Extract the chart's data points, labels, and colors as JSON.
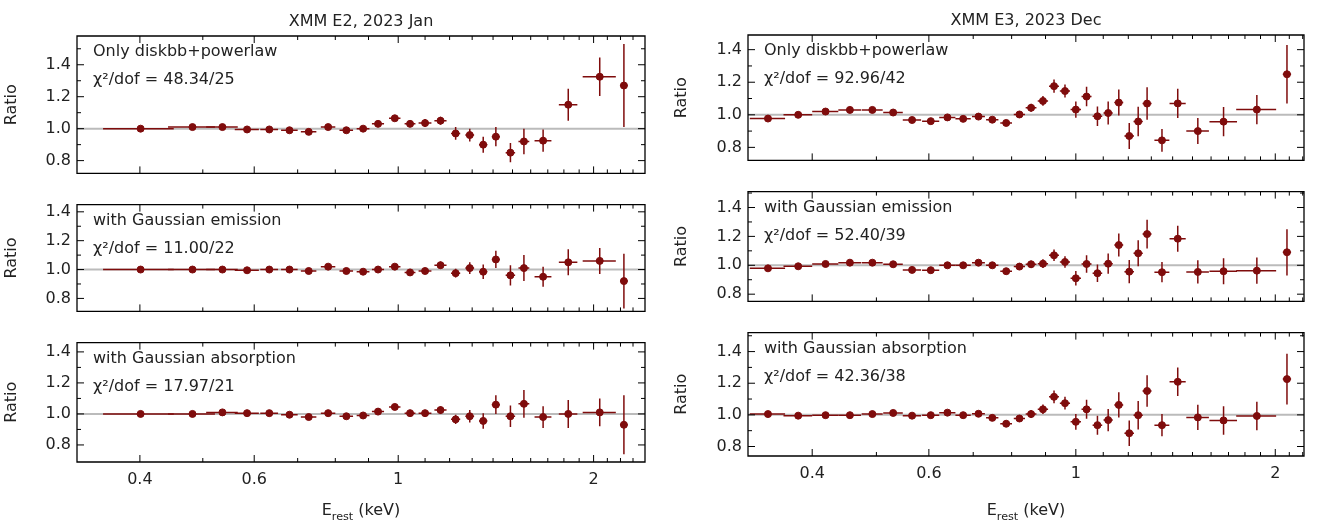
{
  "chart_data": [
    {
      "type": "scatter",
      "title": "XMM E2, 2023 Jan",
      "ylabel": "Ratio",
      "log": "x",
      "marker": "circle",
      "color": "#7f0c0c",
      "tick_labels": "y",
      "annotations": [
        "Only diskbb+powerlaw",
        "χ²/dof = 48.34/25"
      ],
      "ref_lines": [
        {
          "axis": "y",
          "value": 1,
          "color": "#bbbbbb"
        }
      ],
      "xlim": [
        0.32,
        2.4
      ],
      "ylim": [
        0.72,
        1.58
      ],
      "xticks": [
        0.4,
        {
          "value": 0.5,
          "label": null
        },
        0.6,
        {
          "value": 0.7,
          "label": null
        },
        {
          "value": 0.8,
          "label": null
        },
        {
          "value": 0.9,
          "label": null
        },
        1,
        {
          "value": 1.1,
          "label": null
        },
        {
          "value": 1.2,
          "label": null
        },
        {
          "value": 1.3,
          "label": null
        },
        {
          "value": 1.4,
          "label": null
        },
        {
          "value": 1.5,
          "label": null
        },
        {
          "value": 1.6,
          "label": null
        },
        {
          "value": 1.7,
          "label": null
        },
        {
          "value": 1.8,
          "label": null
        },
        {
          "value": 1.9,
          "label": null
        },
        2,
        {
          "value": 2.1,
          "label": null
        },
        {
          "value": 2.2,
          "label": null
        },
        {
          "value": 2.3,
          "label": null
        }
      ],
      "yticks": [
        {
          "value": 0.8,
          "label": "0.8"
        },
        {
          "value": 0.9,
          "label": null
        },
        {
          "value": 1,
          "label": "1.0"
        },
        {
          "value": 1.1,
          "label": null
        },
        {
          "value": 1.2,
          "label": "1.2"
        },
        {
          "value": 1.3,
          "label": null
        },
        {
          "value": 1.4,
          "label": "1.4"
        },
        {
          "value": 1.5,
          "label": null
        }
      ],
      "x": [
        0.401,
        0.482,
        0.536,
        0.585,
        0.633,
        0.68,
        0.728,
        0.78,
        0.832,
        0.883,
        0.931,
        0.988,
        1.043,
        1.1,
        1.162,
        1.226,
        1.289,
        1.352,
        1.414,
        1.489,
        1.562,
        1.672,
        1.828,
        2.044,
        2.227
      ],
      "values": [
        1.0,
        1.01,
        1.01,
        0.995,
        0.995,
        0.99,
        0.98,
        1.01,
        0.99,
        1.0,
        1.03,
        1.065,
        1.03,
        1.035,
        1.05,
        0.97,
        0.96,
        0.9,
        0.95,
        0.85,
        0.92,
        0.925,
        1.15,
        1.325,
        1.27
      ],
      "errors": [
        0.01,
        0.01,
        0.01,
        0.01,
        0.01,
        0.01,
        0.01,
        0.01,
        0.01,
        0.01,
        0.015,
        0.015,
        0.02,
        0.025,
        0.025,
        0.04,
        0.04,
        0.05,
        0.06,
        0.06,
        0.08,
        0.07,
        0.1,
        0.12,
        0.26
      ],
      "xerrors": [
        0.05,
        0.04,
        0.03,
        0.025,
        0.02,
        0.02,
        0.02,
        0.02,
        0.02,
        0.02,
        0.02,
        0.02,
        0.02,
        0.025,
        0.025,
        0.02,
        0.02,
        0.02,
        0.02,
        0.025,
        0.03,
        0.05,
        0.06,
        0.12,
        0.03
      ]
    },
    {
      "type": "scatter",
      "ylabel": "Ratio",
      "log": "x",
      "marker": "circle",
      "color": "#7f0c0c",
      "tick_labels": "y",
      "annotations": [
        "with Gaussian emission",
        "χ²/dof = 11.00/22"
      ],
      "ref_lines": [
        {
          "axis": "y",
          "value": 1,
          "color": "#bbbbbb"
        }
      ],
      "xlim": [
        0.32,
        2.4
      ],
      "ylim": [
        0.71,
        1.45
      ],
      "xticks": [
        0.4,
        {
          "value": 0.5,
          "label": null
        },
        0.6,
        {
          "value": 0.7,
          "label": null
        },
        {
          "value": 0.8,
          "label": null
        },
        {
          "value": 0.9,
          "label": null
        },
        1,
        {
          "value": 1.1,
          "label": null
        },
        {
          "value": 1.2,
          "label": null
        },
        {
          "value": 1.3,
          "label": null
        },
        {
          "value": 1.4,
          "label": null
        },
        {
          "value": 1.5,
          "label": null
        },
        {
          "value": 1.6,
          "label": null
        },
        {
          "value": 1.7,
          "label": null
        },
        {
          "value": 1.8,
          "label": null
        },
        {
          "value": 1.9,
          "label": null
        },
        2,
        {
          "value": 2.1,
          "label": null
        },
        {
          "value": 2.2,
          "label": null
        },
        {
          "value": 2.3,
          "label": null
        }
      ],
      "yticks": [
        {
          "value": 0.8,
          "label": "0.8"
        },
        {
          "value": 0.9,
          "label": null
        },
        {
          "value": 1,
          "label": "1.0"
        },
        {
          "value": 1.1,
          "label": null
        },
        {
          "value": 1.2,
          "label": "1.2"
        },
        {
          "value": 1.3,
          "label": null
        },
        {
          "value": 1.4,
          "label": "1.4"
        }
      ],
      "x": [
        0.401,
        0.482,
        0.536,
        0.585,
        0.633,
        0.68,
        0.728,
        0.78,
        0.832,
        0.883,
        0.931,
        0.988,
        1.043,
        1.1,
        1.162,
        1.226,
        1.289,
        1.352,
        1.414,
        1.489,
        1.562,
        1.672,
        1.828,
        2.044,
        2.227
      ],
      "values": [
        1.0,
        1.0,
        1.0,
        0.995,
        1.0,
        1.0,
        0.99,
        1.02,
        0.99,
        0.985,
        1.0,
        1.02,
        0.98,
        0.99,
        1.03,
        0.975,
        1.01,
        0.985,
        1.07,
        0.96,
        1.01,
        0.95,
        1.05,
        1.06,
        0.92
      ],
      "errors": [
        0.01,
        0.01,
        0.01,
        0.01,
        0.01,
        0.01,
        0.01,
        0.01,
        0.01,
        0.01,
        0.01,
        0.015,
        0.02,
        0.02,
        0.025,
        0.03,
        0.04,
        0.05,
        0.06,
        0.07,
        0.09,
        0.07,
        0.09,
        0.09,
        0.19
      ],
      "xerrors": [
        0.05,
        0.04,
        0.03,
        0.025,
        0.02,
        0.02,
        0.02,
        0.02,
        0.02,
        0.02,
        0.02,
        0.02,
        0.02,
        0.025,
        0.025,
        0.02,
        0.02,
        0.02,
        0.02,
        0.025,
        0.03,
        0.05,
        0.06,
        0.12,
        0.03
      ]
    },
    {
      "type": "scatter",
      "xlabel": "E$_{rest}$ (keV)",
      "ylabel": "Ratio",
      "log": "x",
      "marker": "circle",
      "color": "#7f0c0c",
      "annotations": [
        "with Gaussian absorption",
        "χ²/dof = 17.97/21"
      ],
      "ref_lines": [
        {
          "axis": "y",
          "value": 1,
          "color": "#bbbbbb"
        }
      ],
      "xlim": [
        0.32,
        2.4
      ],
      "ylim": [
        0.69,
        1.46
      ],
      "xticks": [
        0.4,
        {
          "value": 0.5,
          "label": null
        },
        0.6,
        {
          "value": 0.7,
          "label": null
        },
        {
          "value": 0.8,
          "label": null
        },
        {
          "value": 0.9,
          "label": null
        },
        1,
        {
          "value": 1.1,
          "label": null
        },
        {
          "value": 1.2,
          "label": null
        },
        {
          "value": 1.3,
          "label": null
        },
        {
          "value": 1.4,
          "label": null
        },
        {
          "value": 1.5,
          "label": null
        },
        {
          "value": 1.6,
          "label": null
        },
        {
          "value": 1.7,
          "label": null
        },
        {
          "value": 1.8,
          "label": null
        },
        {
          "value": 1.9,
          "label": null
        },
        2,
        {
          "value": 2.1,
          "label": null
        },
        {
          "value": 2.2,
          "label": null
        },
        {
          "value": 2.3,
          "label": null
        }
      ],
      "yticks": [
        {
          "value": 0.8,
          "label": "0.8"
        },
        {
          "value": 0.9,
          "label": null
        },
        {
          "value": 1,
          "label": "1.0"
        },
        {
          "value": 1.1,
          "label": null
        },
        {
          "value": 1.2,
          "label": "1.2"
        },
        {
          "value": 1.3,
          "label": null
        },
        {
          "value": 1.4,
          "label": "1.4"
        }
      ],
      "x": [
        0.401,
        0.482,
        0.536,
        0.585,
        0.633,
        0.68,
        0.728,
        0.78,
        0.832,
        0.883,
        0.931,
        0.988,
        1.043,
        1.1,
        1.162,
        1.226,
        1.289,
        1.352,
        1.414,
        1.489,
        1.562,
        1.672,
        1.828,
        2.044,
        2.227
      ],
      "values": [
        1.0,
        1.0,
        1.01,
        1.005,
        1.005,
        0.995,
        0.98,
        1.005,
        0.985,
        0.99,
        1.015,
        1.045,
        1.005,
        1.005,
        1.025,
        0.965,
        0.985,
        0.955,
        1.06,
        0.985,
        1.065,
        0.98,
        1.0,
        1.01,
        0.93
      ],
      "errors": [
        0.01,
        0.01,
        0.01,
        0.01,
        0.01,
        0.01,
        0.01,
        0.01,
        0.01,
        0.01,
        0.01,
        0.015,
        0.02,
        0.02,
        0.025,
        0.03,
        0.04,
        0.05,
        0.06,
        0.07,
        0.09,
        0.07,
        0.09,
        0.09,
        0.19
      ],
      "xerrors": [
        0.05,
        0.04,
        0.03,
        0.025,
        0.02,
        0.02,
        0.02,
        0.02,
        0.02,
        0.02,
        0.02,
        0.02,
        0.02,
        0.025,
        0.025,
        0.02,
        0.02,
        0.02,
        0.02,
        0.025,
        0.03,
        0.05,
        0.06,
        0.12,
        0.03
      ]
    },
    {
      "type": "scatter",
      "title": "XMM E3, 2023 Dec",
      "ylabel": "Ratio",
      "log": "x",
      "marker": "circle",
      "color": "#7f0c0c",
      "tick_labels": "y",
      "annotations": [
        "Only diskbb+powerlaw",
        "χ²/dof = 92.96/42"
      ],
      "ref_lines": [
        {
          "axis": "y",
          "value": 1,
          "color": "#bbbbbb"
        }
      ],
      "xlim": [
        0.32,
        2.21
      ],
      "ylim": [
        0.72,
        1.49
      ],
      "xticks": [
        0.4,
        {
          "value": 0.5,
          "label": null
        },
        0.6,
        {
          "value": 0.7,
          "label": null
        },
        {
          "value": 0.8,
          "label": null
        },
        {
          "value": 0.9,
          "label": null
        },
        1,
        {
          "value": 1.1,
          "label": null
        },
        {
          "value": 1.2,
          "label": null
        },
        {
          "value": 1.3,
          "label": null
        },
        {
          "value": 1.4,
          "label": null
        },
        {
          "value": 1.5,
          "label": null
        },
        {
          "value": 1.6,
          "label": null
        },
        {
          "value": 1.7,
          "label": null
        },
        {
          "value": 1.8,
          "label": null
        },
        {
          "value": 1.9,
          "label": null
        },
        2,
        {
          "value": 2.1,
          "label": null
        },
        {
          "value": 2.2,
          "label": null
        }
      ],
      "yticks": [
        {
          "value": 0.8,
          "label": "0.8"
        },
        {
          "value": 0.9,
          "label": null
        },
        {
          "value": 1,
          "label": "1.0"
        },
        {
          "value": 1.1,
          "label": null
        },
        {
          "value": 1.2,
          "label": "1.2"
        },
        {
          "value": 1.3,
          "label": null
        },
        {
          "value": 1.4,
          "label": "1.4"
        }
      ],
      "x": [
        0.343,
        0.381,
        0.419,
        0.456,
        0.493,
        0.53,
        0.566,
        0.604,
        0.64,
        0.676,
        0.713,
        0.748,
        0.785,
        0.822,
        0.856,
        0.892,
        0.927,
        0.963,
        1.0,
        1.038,
        1.078,
        1.119,
        1.161,
        1.204,
        1.242,
        1.281,
        1.349,
        1.425,
        1.528,
        1.671,
        1.876,
        2.083
      ],
      "values": [
        0.977,
        1.0,
        1.02,
        1.03,
        1.03,
        1.014,
        0.968,
        0.961,
        0.984,
        0.975,
        0.989,
        0.97,
        0.95,
        1.002,
        1.043,
        1.085,
        1.176,
        1.146,
        1.032,
        1.112,
        0.991,
        1.011,
        1.075,
        0.87,
        0.959,
        1.069,
        0.843,
        1.07,
        0.9,
        0.958,
        1.032,
        1.249
      ],
      "errors": [
        0.01,
        0.01,
        0.01,
        0.01,
        0.01,
        0.01,
        0.01,
        0.01,
        0.012,
        0.012,
        0.015,
        0.015,
        0.018,
        0.02,
        0.025,
        0.03,
        0.04,
        0.04,
        0.05,
        0.06,
        0.06,
        0.07,
        0.08,
        0.08,
        0.09,
        0.1,
        0.07,
        0.09,
        0.08,
        0.09,
        0.09,
        0.18
      ],
      "xerrors": [
        0.021,
        0.019,
        0.019,
        0.018,
        0.018,
        0.018,
        0.018,
        0.018,
        0.018,
        0.018,
        0.016,
        0.016,
        0.016,
        0.016,
        0.016,
        0.016,
        0.016,
        0.017,
        0.018,
        0.018,
        0.018,
        0.018,
        0.018,
        0.02,
        0.02,
        0.02,
        0.035,
        0.04,
        0.06,
        0.08,
        0.13,
        0.03
      ]
    },
    {
      "type": "scatter",
      "ylabel": "Ratio",
      "log": "x",
      "marker": "circle",
      "color": "#7f0c0c",
      "tick_labels": "y",
      "annotations": [
        "with Gaussian emission",
        "χ²/dof = 52.40/39"
      ],
      "ref_lines": [
        {
          "axis": "y",
          "value": 1,
          "color": "#bbbbbb"
        }
      ],
      "xlim": [
        0.32,
        2.21
      ],
      "ylim": [
        0.75,
        1.51
      ],
      "xticks": [
        0.4,
        {
          "value": 0.5,
          "label": null
        },
        0.6,
        {
          "value": 0.7,
          "label": null
        },
        {
          "value": 0.8,
          "label": null
        },
        {
          "value": 0.9,
          "label": null
        },
        1,
        {
          "value": 1.1,
          "label": null
        },
        {
          "value": 1.2,
          "label": null
        },
        {
          "value": 1.3,
          "label": null
        },
        {
          "value": 1.4,
          "label": null
        },
        {
          "value": 1.5,
          "label": null
        },
        {
          "value": 1.6,
          "label": null
        },
        {
          "value": 1.7,
          "label": null
        },
        {
          "value": 1.8,
          "label": null
        },
        {
          "value": 1.9,
          "label": null
        },
        2,
        {
          "value": 2.1,
          "label": null
        },
        {
          "value": 2.2,
          "label": null
        }
      ],
      "yticks": [
        {
          "value": 0.8,
          "label": "0.8"
        },
        {
          "value": 0.9,
          "label": null
        },
        {
          "value": 1,
          "label": "1.0"
        },
        {
          "value": 1.1,
          "label": null
        },
        {
          "value": 1.2,
          "label": "1.2"
        },
        {
          "value": 1.3,
          "label": null
        },
        {
          "value": 1.4,
          "label": "1.4"
        },
        {
          "value": 1.5,
          "label": null
        }
      ],
      "x": [
        0.343,
        0.381,
        0.419,
        0.456,
        0.493,
        0.53,
        0.566,
        0.604,
        0.64,
        0.676,
        0.713,
        0.748,
        0.785,
        0.822,
        0.856,
        0.892,
        0.927,
        0.963,
        1.0,
        1.038,
        1.078,
        1.119,
        1.161,
        1.204,
        1.242,
        1.281,
        1.349,
        1.425,
        1.528,
        1.671,
        1.876,
        2.083
      ],
      "values": [
        0.979,
        0.993,
        1.009,
        1.018,
        1.018,
        1.007,
        0.968,
        0.966,
        1.0,
        1.0,
        1.018,
        1.0,
        0.959,
        0.991,
        1.007,
        1.011,
        1.069,
        1.023,
        0.91,
        1.009,
        0.945,
        1.011,
        1.14,
        0.956,
        1.083,
        1.216,
        0.952,
        1.184,
        0.954,
        0.959,
        0.963,
        1.09
      ],
      "errors": [
        0.01,
        0.01,
        0.01,
        0.01,
        0.01,
        0.01,
        0.01,
        0.01,
        0.012,
        0.012,
        0.015,
        0.015,
        0.018,
        0.02,
        0.025,
        0.03,
        0.04,
        0.04,
        0.05,
        0.06,
        0.06,
        0.07,
        0.08,
        0.08,
        0.09,
        0.1,
        0.07,
        0.09,
        0.08,
        0.09,
        0.09,
        0.16
      ],
      "xerrors": [
        0.021,
        0.019,
        0.019,
        0.018,
        0.018,
        0.018,
        0.018,
        0.018,
        0.018,
        0.018,
        0.016,
        0.016,
        0.016,
        0.016,
        0.016,
        0.016,
        0.016,
        0.017,
        0.018,
        0.018,
        0.018,
        0.018,
        0.018,
        0.02,
        0.02,
        0.02,
        0.035,
        0.04,
        0.06,
        0.08,
        0.13,
        0.03
      ]
    },
    {
      "type": "scatter",
      "xlabel": "E$_{rest}$ (keV)",
      "ylabel": "Ratio",
      "log": "x",
      "marker": "circle",
      "color": "#7f0c0c",
      "annotations": [
        "with Gaussian absorption",
        "χ²/dof = 42.36/38"
      ],
      "ref_lines": [
        {
          "axis": "y",
          "value": 1,
          "color": "#bbbbbb"
        }
      ],
      "xlim": [
        0.32,
        2.21
      ],
      "ylim": [
        0.74,
        1.52
      ],
      "xticks": [
        0.4,
        {
          "value": 0.5,
          "label": null
        },
        0.6,
        {
          "value": 0.7,
          "label": null
        },
        {
          "value": 0.8,
          "label": null
        },
        {
          "value": 0.9,
          "label": null
        },
        1,
        {
          "value": 1.1,
          "label": null
        },
        {
          "value": 1.2,
          "label": null
        },
        {
          "value": 1.3,
          "label": null
        },
        {
          "value": 1.4,
          "label": null
        },
        {
          "value": 1.5,
          "label": null
        },
        {
          "value": 1.6,
          "label": null
        },
        {
          "value": 1.7,
          "label": null
        },
        {
          "value": 1.8,
          "label": null
        },
        {
          "value": 1.9,
          "label": null
        },
        2,
        {
          "value": 2.1,
          "label": null
        },
        {
          "value": 2.2,
          "label": null
        }
      ],
      "yticks": [
        {
          "value": 0.8,
          "label": "0.8"
        },
        {
          "value": 0.9,
          "label": null
        },
        {
          "value": 1,
          "label": "1.0"
        },
        {
          "value": 1.1,
          "label": null
        },
        {
          "value": 1.2,
          "label": "1.2"
        },
        {
          "value": 1.3,
          "label": null
        },
        {
          "value": 1.4,
          "label": "1.4"
        },
        {
          "value": 1.5,
          "label": null
        }
      ],
      "x": [
        0.343,
        0.381,
        0.419,
        0.456,
        0.493,
        0.53,
        0.566,
        0.604,
        0.64,
        0.676,
        0.713,
        0.748,
        0.785,
        0.822,
        0.856,
        0.892,
        0.927,
        0.963,
        1.0,
        1.038,
        1.078,
        1.119,
        1.161,
        1.204,
        1.242,
        1.281,
        1.349,
        1.425,
        1.528,
        1.671,
        1.876,
        2.083
      ],
      "values": [
        1.005,
        0.995,
        0.998,
        0.998,
        1.005,
        1.012,
        0.995,
        0.998,
        1.014,
        0.998,
        1.007,
        0.981,
        0.944,
        0.977,
        1.005,
        1.035,
        1.114,
        1.074,
        0.956,
        1.035,
        0.935,
        0.967,
        1.063,
        0.884,
        0.998,
        1.151,
        0.935,
        1.209,
        0.984,
        0.965,
        0.993,
        1.226
      ],
      "errors": [
        0.01,
        0.01,
        0.01,
        0.01,
        0.01,
        0.01,
        0.01,
        0.01,
        0.012,
        0.012,
        0.015,
        0.015,
        0.018,
        0.02,
        0.025,
        0.03,
        0.04,
        0.04,
        0.05,
        0.06,
        0.06,
        0.07,
        0.08,
        0.08,
        0.09,
        0.1,
        0.07,
        0.09,
        0.08,
        0.09,
        0.09,
        0.16
      ],
      "xerrors": [
        0.021,
        0.019,
        0.019,
        0.018,
        0.018,
        0.018,
        0.018,
        0.018,
        0.018,
        0.018,
        0.016,
        0.016,
        0.016,
        0.016,
        0.016,
        0.016,
        0.016,
        0.017,
        0.018,
        0.018,
        0.018,
        0.018,
        0.018,
        0.02,
        0.02,
        0.02,
        0.035,
        0.04,
        0.06,
        0.08,
        0.13,
        0.03
      ]
    }
  ]
}
